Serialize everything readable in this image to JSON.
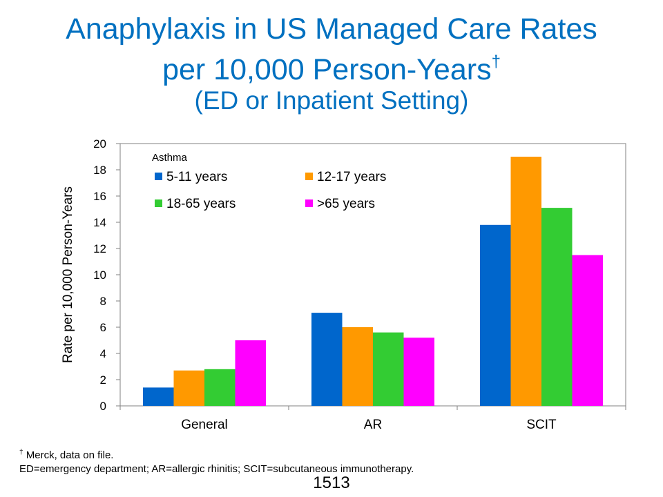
{
  "slide": {
    "title_line1": "Anaphylaxis in US Managed Care Rates",
    "title_line2": "per 10,000 Person-Years",
    "title_dagger": "†",
    "title_line3": "(ED or Inpatient Setting)",
    "footnote_mark": "†",
    "footnote1": " Merck, data on file.",
    "footnote2": "ED=emergency department; AR=allergic rhinitis; SCIT=subcutaneous immunotherapy.",
    "page_number": "1513"
  },
  "chart_data": {
    "type": "bar",
    "categories": [
      "General",
      "AR",
      "SCIT"
    ],
    "series": [
      {
        "name": "5-11 years",
        "color": "#0066cc",
        "values": [
          1.4,
          7.1,
          13.8
        ]
      },
      {
        "name": "12-17 years",
        "color": "#ff9900",
        "values": [
          2.7,
          6.0,
          19.0
        ]
      },
      {
        "name": "18-65 years",
        "color": "#33cc33",
        "values": [
          2.8,
          5.6,
          15.1
        ]
      },
      {
        "name": ">65 years",
        "color": "#ff00ff",
        "values": [
          5.0,
          5.2,
          11.5
        ]
      }
    ],
    "legend_title": "Asthma",
    "legend_position": "top-left",
    "ylabel": "Rate per 10,000 Person-Years",
    "xlabel": "",
    "ylim": [
      0,
      20
    ],
    "yticks": [
      0,
      2,
      4,
      6,
      8,
      10,
      12,
      14,
      16,
      18,
      20
    ],
    "grid": false
  }
}
